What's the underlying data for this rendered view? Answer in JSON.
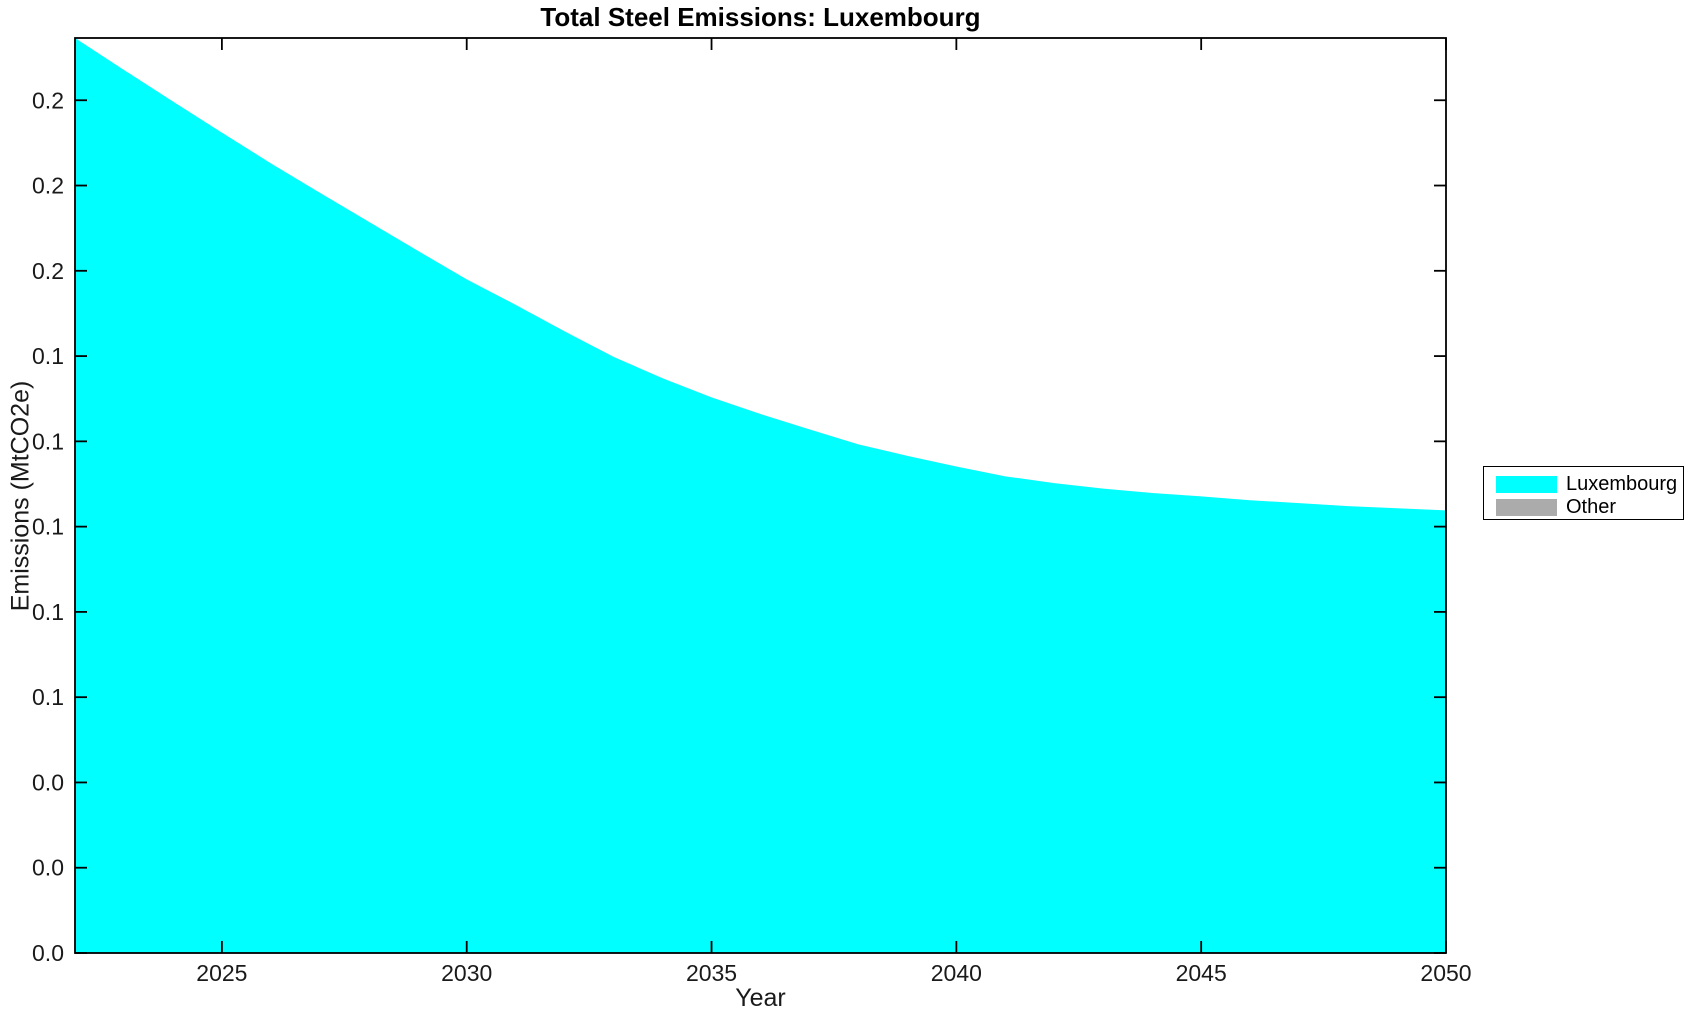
{
  "figure": {
    "background": "#ffffff"
  },
  "chart_data": {
    "type": "area",
    "title": "Total Steel Emissions: Luxembourg",
    "xlabel": "Year",
    "ylabel": "Emissions (MtCO2e)",
    "x": [
      2022,
      2023,
      2024,
      2025,
      2026,
      2027,
      2028,
      2029,
      2030,
      2031,
      2032,
      2033,
      2034,
      2035,
      2036,
      2037,
      2038,
      2039,
      2040,
      2041,
      2042,
      2043,
      2044,
      2045,
      2046,
      2047,
      2048,
      2049,
      2050
    ],
    "series": [
      {
        "name": "Luxembourg",
        "color": "#00FFFF",
        "values": [
          0.2146,
          0.2071,
          0.1997,
          0.1924,
          0.1852,
          0.1783,
          0.1715,
          0.1647,
          0.158,
          0.152,
          0.1458,
          0.1398,
          0.1348,
          0.1303,
          0.1264,
          0.1228,
          0.1193,
          0.1166,
          0.1141,
          0.1118,
          0.1102,
          0.1089,
          0.1079,
          0.1071,
          0.1062,
          0.1055,
          0.1048,
          0.1043,
          0.1038
        ]
      },
      {
        "name": "Other",
        "color": "#ABABAB",
        "values": [
          0,
          0,
          0,
          0,
          0,
          0,
          0,
          0,
          0,
          0,
          0,
          0,
          0,
          0,
          0,
          0,
          0,
          0,
          0,
          0,
          0,
          0,
          0,
          0,
          0,
          0,
          0,
          0,
          0
        ]
      }
    ],
    "xlim": [
      2022,
      2050
    ],
    "ylim": [
      0,
      0.2146
    ],
    "x_ticks": [
      2025,
      2030,
      2035,
      2040,
      2045,
      2050
    ],
    "x_tick_labels": [
      "2025",
      "2030",
      "2035",
      "2040",
      "2045",
      "2050"
    ],
    "y_ticks": [
      0,
      0.02,
      0.04,
      0.06,
      0.08,
      0.1,
      0.12,
      0.14,
      0.16,
      0.18,
      0.2
    ],
    "y_tick_labels": [
      "0.0",
      "0.0",
      "0.0",
      "0.1",
      "0.1",
      "0.1",
      "0.1",
      "0.1",
      "0.2",
      "0.2",
      "0.2"
    ],
    "grid": false,
    "box": true,
    "tick_direction": "in",
    "legend_position": "outside-right",
    "axis_color": "#000000"
  },
  "legend": {
    "items": [
      {
        "label": "Luxembourg",
        "color": "#00FFFF"
      },
      {
        "label": "Other",
        "color": "#ABABAB"
      }
    ]
  }
}
